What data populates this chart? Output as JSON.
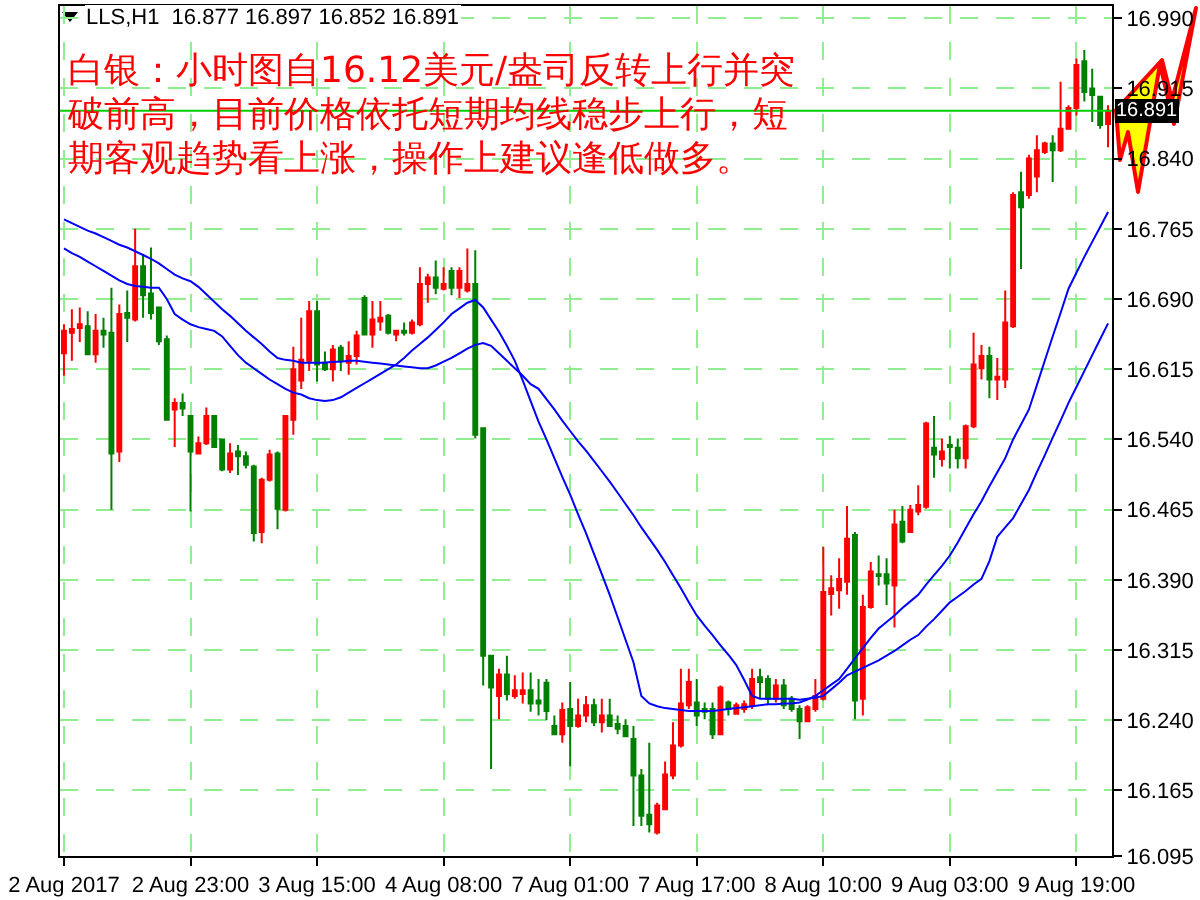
{
  "chart_data": {
    "type": "candlestick",
    "title": "LLS,H1  16.877 16.897 16.852 16.891",
    "annotations": [
      "白银：小时图自16.12美元/盎司反转上行并突破前高，目前价格依托短期均线稳步上行，短期客观趋势看上涨，操作上建议逢低做多。"
    ],
    "categories": [
      "2 Aug 2017",
      null,
      null,
      null,
      null,
      null,
      null,
      null,
      null,
      null,
      null,
      null,
      null,
      null,
      null,
      null,
      "2 Aug 23:00",
      null,
      null,
      null,
      null,
      null,
      null,
      null,
      null,
      null,
      null,
      null,
      null,
      null,
      null,
      null,
      "3 Aug 15:00",
      null,
      null,
      null,
      null,
      null,
      null,
      null,
      null,
      null,
      null,
      null,
      null,
      null,
      null,
      null,
      "4 Aug 08:00",
      null,
      null,
      null,
      null,
      null,
      null,
      null,
      null,
      null,
      null,
      null,
      null,
      null,
      null,
      null,
      "7 Aug 01:00",
      null,
      null,
      null,
      null,
      null,
      null,
      null,
      null,
      null,
      null,
      null,
      null,
      null,
      null,
      null,
      "7 Aug 17:00",
      null,
      null,
      null,
      null,
      null,
      null,
      null,
      null,
      null,
      null,
      null,
      null,
      null,
      null,
      null,
      "8 Aug 10:00",
      null,
      null,
      null,
      null,
      null,
      null,
      null,
      null,
      null,
      null,
      null,
      null,
      null,
      null,
      null,
      "9 Aug 03:00",
      null,
      null,
      null,
      null,
      null,
      null,
      null,
      null,
      null,
      null,
      null,
      null,
      null,
      null,
      null,
      "9 Aug 19:00",
      null,
      null,
      null,
      null
    ],
    "ohlc": [
      [
        16.632,
        16.663,
        16.608,
        16.656
      ],
      [
        16.654,
        16.679,
        16.624,
        16.658
      ],
      [
        16.659,
        16.681,
        16.644,
        16.663
      ],
      [
        16.661,
        16.677,
        16.631,
        16.631
      ],
      [
        16.631,
        16.674,
        16.622,
        16.656
      ],
      [
        16.656,
        16.67,
        16.638,
        16.652
      ],
      [
        16.654,
        16.702,
        16.465,
        16.525
      ],
      [
        16.527,
        16.684,
        16.516,
        16.674
      ],
      [
        16.675,
        16.699,
        16.644,
        16.67
      ],
      [
        16.668,
        16.765,
        16.666,
        16.725
      ],
      [
        16.725,
        16.738,
        16.67,
        16.694
      ],
      [
        16.696,
        16.745,
        16.668,
        16.675
      ],
      [
        16.681,
        16.682,
        16.641,
        16.645
      ],
      [
        16.647,
        16.651,
        16.561,
        16.561
      ],
      [
        16.572,
        16.584,
        16.532,
        16.579
      ],
      [
        16.579,
        16.589,
        16.565,
        16.573
      ],
      [
        16.565,
        16.566,
        16.463,
        16.527
      ],
      [
        16.525,
        16.543,
        16.525,
        16.536
      ],
      [
        16.536,
        16.574,
        16.534,
        16.565
      ],
      [
        16.565,
        16.566,
        16.531,
        16.532
      ],
      [
        16.54,
        16.541,
        16.506,
        16.508
      ],
      [
        16.508,
        16.536,
        16.504,
        16.525
      ],
      [
        16.527,
        16.534,
        16.502,
        16.522
      ],
      [
        16.522,
        16.527,
        16.509,
        16.513
      ],
      [
        16.511,
        16.513,
        16.431,
        16.44
      ],
      [
        16.441,
        16.499,
        16.429,
        16.497
      ],
      [
        16.497,
        16.529,
        16.495,
        16.524
      ],
      [
        16.525,
        16.527,
        16.444,
        16.466
      ],
      [
        16.465,
        16.566,
        16.463,
        16.565
      ],
      [
        16.561,
        16.639,
        16.545,
        16.615
      ],
      [
        16.603,
        16.67,
        16.594,
        16.625
      ],
      [
        16.624,
        16.688,
        16.613,
        16.677
      ],
      [
        16.677,
        16.688,
        16.602,
        16.62
      ],
      [
        16.622,
        16.634,
        16.613,
        16.615
      ],
      [
        16.615,
        16.641,
        16.602,
        16.636
      ],
      [
        16.638,
        16.641,
        16.613,
        16.624
      ],
      [
        16.622,
        16.645,
        16.609,
        16.629
      ],
      [
        16.629,
        16.656,
        16.62,
        16.651
      ],
      [
        16.691,
        16.694,
        16.651,
        16.652
      ],
      [
        16.652,
        16.688,
        16.638,
        16.668
      ],
      [
        16.666,
        16.688,
        16.656,
        16.67
      ],
      [
        16.672,
        16.674,
        16.652,
        16.654
      ],
      [
        16.652,
        16.656,
        16.645,
        16.656
      ],
      [
        16.656,
        16.665,
        16.651,
        16.654
      ],
      [
        16.654,
        16.668,
        16.652,
        16.665
      ],
      [
        16.663,
        16.724,
        16.661,
        16.706
      ],
      [
        16.706,
        16.717,
        16.686,
        16.713
      ],
      [
        16.713,
        16.731,
        16.695,
        16.702
      ],
      [
        16.701,
        16.724,
        16.699,
        16.706
      ],
      [
        16.72,
        16.724,
        16.694,
        16.702
      ],
      [
        16.702,
        16.724,
        16.691,
        16.72
      ],
      [
        16.699,
        16.744,
        16.697,
        16.706
      ],
      [
        16.706,
        16.742,
        16.541,
        16.545
      ],
      [
        16.552,
        16.552,
        16.277,
        16.309
      ],
      [
        16.309,
        16.309,
        16.188,
        16.275
      ],
      [
        16.266,
        16.295,
        16.241,
        16.289
      ],
      [
        16.289,
        16.309,
        16.261,
        16.268
      ],
      [
        16.266,
        16.288,
        16.263,
        16.272
      ],
      [
        16.268,
        16.291,
        16.258,
        16.272
      ],
      [
        16.272,
        16.291,
        16.249,
        16.258
      ],
      [
        16.261,
        16.284,
        16.245,
        16.258
      ],
      [
        16.28,
        16.284,
        16.24,
        16.25
      ],
      [
        16.234,
        16.245,
        16.224,
        16.225
      ],
      [
        16.225,
        16.259,
        16.216,
        16.251
      ],
      [
        16.252,
        16.281,
        16.191,
        16.234
      ],
      [
        16.234,
        16.263,
        16.232,
        16.245
      ],
      [
        16.245,
        16.266,
        16.238,
        16.256
      ],
      [
        16.256,
        16.263,
        16.234,
        16.238
      ],
      [
        16.238,
        16.263,
        16.227,
        16.245
      ],
      [
        16.245,
        16.263,
        16.234,
        16.234
      ],
      [
        16.236,
        16.245,
        16.225,
        16.231
      ],
      [
        16.234,
        16.241,
        16.222,
        16.223
      ],
      [
        16.22,
        16.234,
        16.127,
        16.181
      ],
      [
        16.181,
        16.188,
        16.127,
        16.138
      ],
      [
        16.139,
        16.216,
        16.12,
        16.129
      ],
      [
        16.12,
        16.152,
        16.118,
        16.149
      ],
      [
        16.145,
        16.196,
        16.144,
        16.182
      ],
      [
        16.181,
        16.238,
        16.177,
        16.213
      ],
      [
        16.213,
        16.295,
        16.211,
        16.258
      ],
      [
        16.256,
        16.295,
        16.252,
        16.281
      ],
      [
        16.259,
        16.284,
        16.234,
        16.245
      ],
      [
        16.252,
        16.259,
        16.241,
        16.249
      ],
      [
        16.252,
        16.259,
        16.22,
        16.225
      ],
      [
        16.225,
        16.277,
        16.225,
        16.275
      ],
      [
        16.259,
        16.261,
        16.245,
        16.252
      ],
      [
        16.247,
        16.259,
        16.246,
        16.256
      ],
      [
        16.252,
        16.261,
        16.248,
        16.257
      ],
      [
        16.256,
        16.295,
        16.252,
        16.284
      ],
      [
        16.286,
        16.295,
        16.263,
        16.281
      ],
      [
        16.284,
        16.288,
        16.256,
        16.263
      ],
      [
        16.263,
        16.284,
        16.259,
        16.277
      ],
      [
        16.277,
        16.284,
        16.252,
        16.256
      ],
      [
        16.263,
        16.266,
        16.249,
        16.252
      ],
      [
        16.252,
        16.256,
        16.22,
        16.239
      ],
      [
        16.239,
        16.256,
        16.238,
        16.254
      ],
      [
        16.252,
        16.284,
        16.249,
        16.266
      ],
      [
        16.263,
        16.425,
        16.261,
        16.377
      ],
      [
        16.375,
        16.395,
        16.352,
        16.381
      ],
      [
        16.379,
        16.413,
        16.359,
        16.391
      ],
      [
        16.388,
        16.469,
        16.374,
        16.434
      ],
      [
        16.438,
        16.441,
        16.241,
        16.261
      ],
      [
        16.263,
        16.374,
        16.245,
        16.361
      ],
      [
        16.361,
        16.409,
        16.359,
        16.399
      ],
      [
        16.396,
        16.416,
        16.384,
        16.394
      ],
      [
        16.396,
        16.413,
        16.363,
        16.386
      ],
      [
        16.384,
        16.465,
        16.339,
        16.449
      ],
      [
        16.452,
        16.469,
        16.429,
        16.431
      ],
      [
        16.441,
        16.47,
        16.44,
        16.465
      ],
      [
        16.463,
        16.491,
        16.459,
        16.47
      ],
      [
        16.468,
        16.559,
        16.466,
        16.557
      ],
      [
        16.531,
        16.565,
        16.499,
        16.524
      ],
      [
        16.519,
        16.541,
        16.511,
        16.527
      ],
      [
        16.534,
        16.544,
        16.509,
        16.532
      ],
      [
        16.531,
        16.541,
        16.509,
        16.52
      ],
      [
        16.52,
        16.556,
        16.509,
        16.554
      ],
      [
        16.554,
        16.654,
        16.552,
        16.62
      ],
      [
        16.616,
        16.641,
        16.604,
        16.629
      ],
      [
        16.629,
        16.639,
        16.584,
        16.604
      ],
      [
        16.604,
        16.627,
        16.582,
        16.607
      ],
      [
        16.604,
        16.699,
        16.595,
        16.665
      ],
      [
        16.661,
        16.804,
        16.659,
        16.801
      ],
      [
        16.804,
        16.826,
        16.722,
        16.788
      ],
      [
        16.801,
        16.844,
        16.797,
        16.84
      ],
      [
        16.821,
        16.865,
        16.804,
        16.849
      ],
      [
        16.847,
        16.858,
        16.845,
        16.856
      ],
      [
        16.856,
        16.865,
        16.815,
        16.849
      ],
      [
        16.849,
        16.922,
        16.847,
        16.872
      ],
      [
        16.872,
        16.897,
        16.871,
        16.894
      ],
      [
        16.894,
        16.947,
        16.886,
        16.94
      ],
      [
        16.944,
        16.956,
        16.901,
        16.911
      ],
      [
        16.915,
        16.936,
        16.879,
        16.908
      ],
      [
        16.906,
        16.906,
        16.872,
        16.876
      ],
      [
        16.877,
        16.897,
        16.852,
        16.891
      ]
    ],
    "colors": [
      "#ff0000",
      "#ff0000",
      "#ff0000",
      "#008000",
      "#ff0000",
      "#008000",
      "#008000",
      "#ff0000",
      "#008000",
      "#ff0000",
      "#008000",
      "#008000",
      "#008000",
      "#008000",
      "#ff0000",
      "#008000",
      "#008000",
      "#ff0000",
      "#ff0000",
      "#008000",
      "#008000",
      "#ff0000",
      "#008000",
      "#008000",
      "#008000",
      "#ff0000",
      "#ff0000",
      "#008000",
      "#ff0000",
      "#ff0000",
      "#ff0000",
      "#ff0000",
      "#008000",
      "#008000",
      "#ff0000",
      "#008000",
      "#ff0000",
      "#ff0000",
      "#008000",
      "#ff0000",
      "#ff0000",
      "#008000",
      "#ff0000",
      "#008000",
      "#ff0000",
      "#ff0000",
      "#ff0000",
      "#008000",
      "#ff0000",
      "#008000",
      "#ff0000",
      "#ff0000",
      "#008000",
      "#008000",
      "#008000",
      "#ff0000",
      "#008000",
      "#ff0000",
      "#ff0000",
      "#008000",
      "#008000",
      "#008000",
      "#008000",
      "#ff0000",
      "#008000",
      "#ff0000",
      "#ff0000",
      "#008000",
      "#ff0000",
      "#008000",
      "#008000",
      "#008000",
      "#008000",
      "#008000",
      "#008000",
      "#ff0000",
      "#ff0000",
      "#ff0000",
      "#ff0000",
      "#ff0000",
      "#008000",
      "#008000",
      "#008000",
      "#ff0000",
      "#008000",
      "#ff0000",
      "#ff0000",
      "#ff0000",
      "#008000",
      "#008000",
      "#ff0000",
      "#008000",
      "#008000",
      "#008000",
      "#ff0000",
      "#ff0000",
      "#ff0000",
      "#ff0000",
      "#ff0000",
      "#ff0000",
      "#008000",
      "#ff0000",
      "#ff0000",
      "#008000",
      "#008000",
      "#ff0000",
      "#008000",
      "#ff0000",
      "#ff0000",
      "#ff0000",
      "#008000",
      "#ff0000",
      "#008000",
      "#008000",
      "#ff0000",
      "#ff0000",
      "#ff0000",
      "#008000",
      "#ff0000",
      "#ff0000",
      "#ff0000",
      "#008000",
      "#ff0000",
      "#ff0000",
      "#ff0000",
      "#008000",
      "#ff0000",
      "#ff0000",
      "#ff0000",
      "#008000",
      "#008000",
      "#008000",
      "#ff0000"
    ],
    "series": [
      {
        "type": "line",
        "color": "#0000ff",
        "values": [
          16.744,
          16.739,
          16.735,
          16.73,
          16.725,
          16.72,
          16.715,
          16.71,
          16.706,
          16.704,
          16.703,
          16.702,
          16.702,
          16.69,
          16.674,
          16.668,
          16.663,
          16.66,
          16.658,
          16.656,
          16.65,
          16.64,
          16.63,
          16.622,
          16.616,
          16.61,
          16.604,
          16.599,
          16.594,
          16.59,
          16.588,
          16.584,
          16.582,
          16.581,
          16.582,
          16.585,
          16.59,
          16.595,
          16.6,
          16.605,
          16.61,
          16.615,
          16.62,
          16.627,
          16.635,
          16.642,
          16.649,
          16.657,
          16.665,
          16.674,
          16.68,
          16.686,
          16.689,
          16.681,
          16.668,
          16.655,
          16.64,
          16.624,
          16.603,
          16.581,
          16.559,
          16.54,
          16.52,
          16.5,
          16.481,
          16.46,
          16.44,
          16.418,
          16.396,
          16.374,
          16.35,
          16.326,
          16.302,
          16.266,
          16.258,
          16.255,
          16.253,
          16.252,
          16.251,
          16.25,
          16.25,
          16.25,
          16.25,
          16.251,
          16.252,
          16.253,
          16.254,
          16.255,
          16.256,
          16.257,
          16.257,
          16.258,
          16.258,
          16.259,
          16.262,
          16.266,
          16.272,
          16.278,
          16.284,
          16.295,
          16.306,
          16.317,
          16.328,
          16.338,
          16.345,
          16.352,
          16.36,
          16.367,
          16.374,
          16.385,
          16.395,
          16.405,
          16.416,
          16.43,
          16.445,
          16.46,
          16.474,
          16.49,
          16.505,
          16.52,
          16.54,
          16.556,
          16.572,
          16.598,
          16.624,
          16.65,
          16.675,
          16.701,
          16.718,
          16.735,
          16.751,
          16.767,
          16.783
        ]
      },
      {
        "type": "line",
        "color": "#0000ff",
        "values": [
          16.775,
          16.771,
          16.767,
          16.763,
          16.76,
          16.756,
          16.752,
          16.748,
          16.745,
          16.741,
          16.737,
          16.733,
          16.728,
          16.722,
          16.716,
          16.712,
          16.709,
          16.703,
          16.695,
          16.687,
          16.679,
          16.672,
          16.664,
          16.656,
          16.649,
          16.642,
          16.634,
          16.627,
          16.625,
          16.624,
          16.622,
          16.622,
          16.622,
          16.622,
          16.623,
          16.623,
          16.624,
          16.624,
          16.623,
          16.622,
          16.621,
          16.62,
          16.619,
          16.618,
          16.617,
          16.616,
          16.616,
          16.619,
          16.623,
          16.627,
          16.632,
          16.637,
          16.641,
          16.643,
          16.64,
          16.632,
          16.624,
          16.616,
          16.608,
          16.599,
          16.594,
          16.583,
          16.572,
          16.56,
          16.549,
          16.538,
          16.528,
          16.517,
          16.506,
          16.495,
          16.483,
          16.471,
          16.459,
          16.446,
          16.434,
          16.422,
          16.409,
          16.395,
          16.381,
          16.366,
          16.352,
          16.341,
          16.331,
          16.32,
          16.31,
          16.299,
          16.283,
          16.266,
          16.263,
          16.263,
          16.263,
          16.263,
          16.263,
          16.262,
          16.263,
          16.264,
          16.266,
          16.273,
          16.28,
          16.288,
          16.292,
          16.296,
          16.3,
          16.304,
          16.309,
          16.314,
          16.32,
          16.326,
          16.331,
          16.34,
          16.348,
          16.357,
          16.366,
          16.372,
          16.378,
          16.385,
          16.391,
          16.41,
          16.436,
          16.446,
          16.456,
          16.471,
          16.486,
          16.505,
          16.523,
          16.542,
          16.56,
          16.579,
          16.596,
          16.613,
          16.63,
          16.647,
          16.664
        ]
      }
    ],
    "ref_lines": [
      {
        "axis": "y",
        "value": 16.891,
        "label": "16.891",
        "color": "#00d000"
      }
    ],
    "ylim": [
      16.095,
      17.003
    ],
    "yticks": [
      16.095,
      16.165,
      {
        "value": 16.24,
        "label": "16.240"
      },
      16.315,
      {
        "value": 16.39,
        "label": "16.390"
      },
      16.465,
      {
        "value": 16.54,
        "label": "16.540"
      },
      16.615,
      {
        "value": 16.69,
        "label": "16.690"
      },
      16.765,
      {
        "value": 16.84,
        "label": "16.840"
      },
      16.915,
      {
        "value": 16.99,
        "label": "16.990"
      }
    ],
    "grid": true
  }
}
